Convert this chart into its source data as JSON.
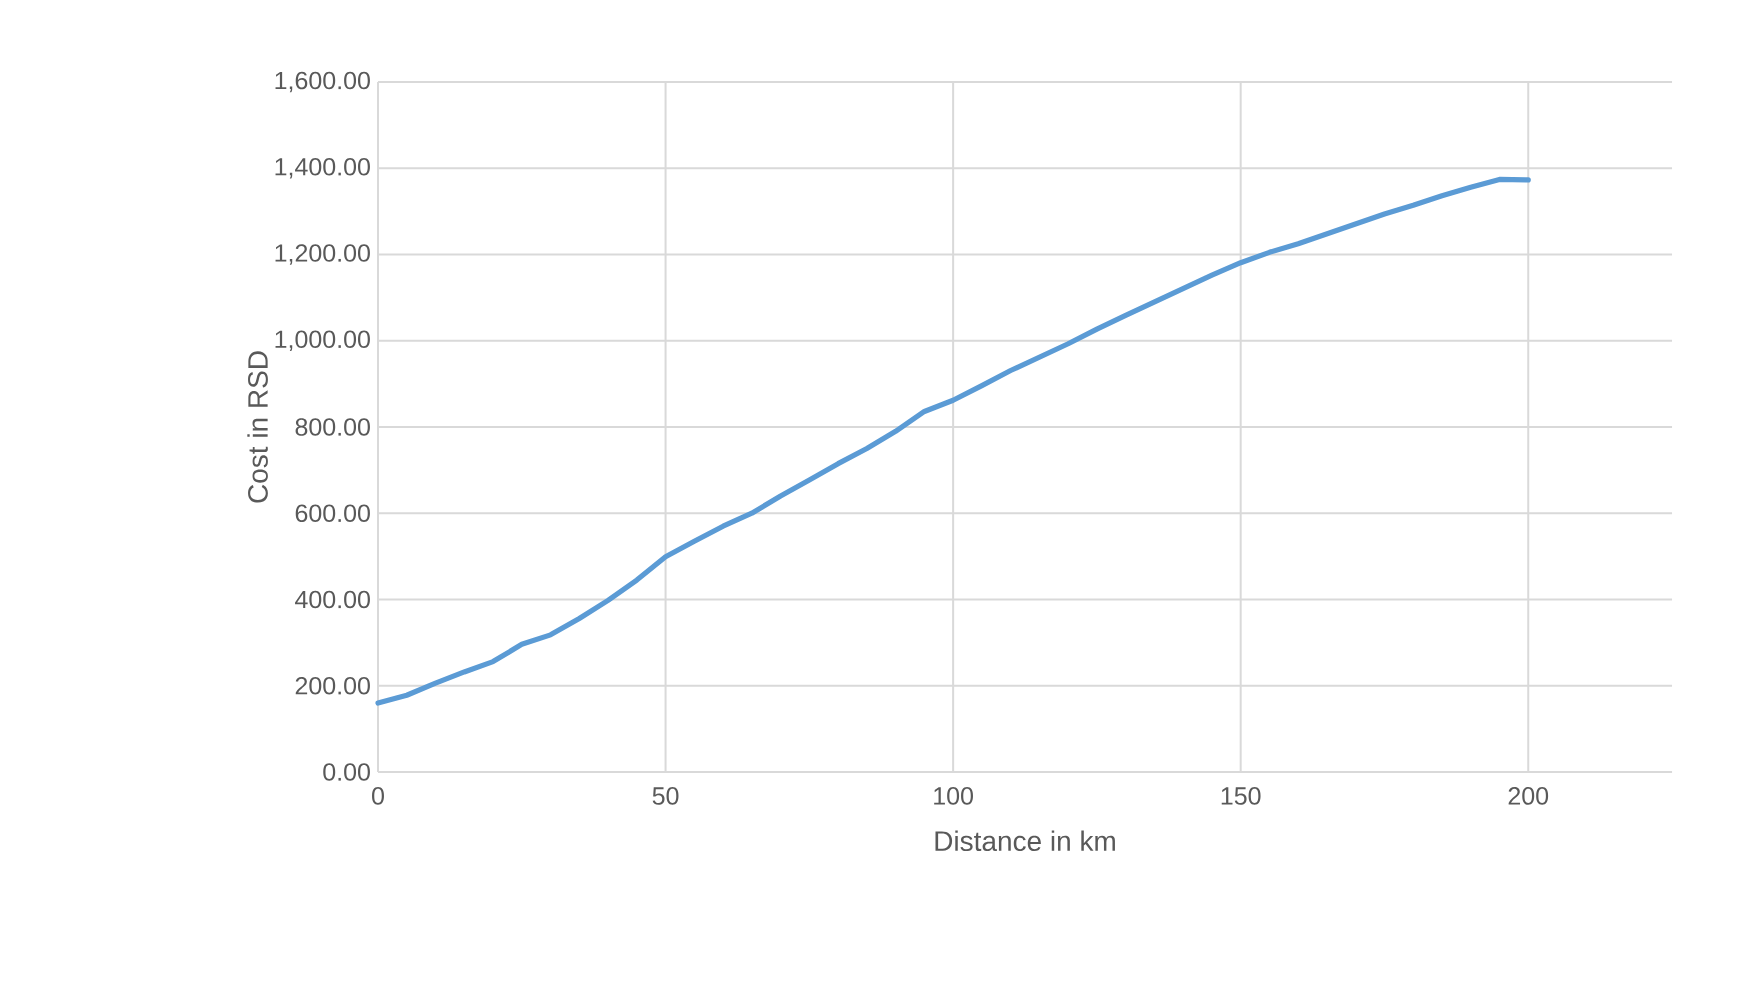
{
  "chart_data": {
    "type": "line",
    "xlabel": "Distance in km",
    "ylabel": "Cost in RSD",
    "x": [
      0,
      5,
      10,
      15,
      20,
      25,
      30,
      35,
      40,
      45,
      50,
      55,
      60,
      65,
      70,
      75,
      80,
      85,
      90,
      95,
      100,
      105,
      110,
      115,
      120,
      125,
      130,
      135,
      140,
      145,
      150,
      155,
      160,
      165,
      170,
      175,
      180,
      185,
      190,
      195,
      200
    ],
    "series": [
      {
        "color": "#5b9bd5",
        "values": [
          160,
          178,
          206,
          232,
          256,
          296,
          318,
          356,
          398,
          445,
          499,
          535,
          570,
          600,
          640,
          677,
          715,
          750,
          790,
          836,
          862,
          896,
          931,
          962,
          993,
          1027,
          1059,
          1090,
          1121,
          1152,
          1181,
          1205,
          1225,
          1248,
          1271,
          1294,
          1314,
          1336,
          1356,
          1374,
          1373
        ]
      }
    ],
    "xlim": [
      0,
      225
    ],
    "xticks": [
      0,
      50,
      100,
      150,
      200
    ],
    "ylim": [
      0,
      1600
    ],
    "yticks": [
      {
        "value": 0,
        "label": "0.00"
      },
      {
        "value": 200,
        "label": "200.00"
      },
      {
        "value": 400,
        "label": "400.00"
      },
      {
        "value": 600,
        "label": "600.00"
      },
      {
        "value": 800,
        "label": "800.00"
      },
      {
        "value": 1000,
        "label": "1,000.00"
      },
      {
        "value": 1200,
        "label": "1,200.00"
      },
      {
        "value": 1400,
        "label": "1,400.00"
      },
      {
        "value": 1600,
        "label": "1,600.00"
      }
    ],
    "grid": true,
    "marker": "none",
    "line_style": "solid"
  }
}
